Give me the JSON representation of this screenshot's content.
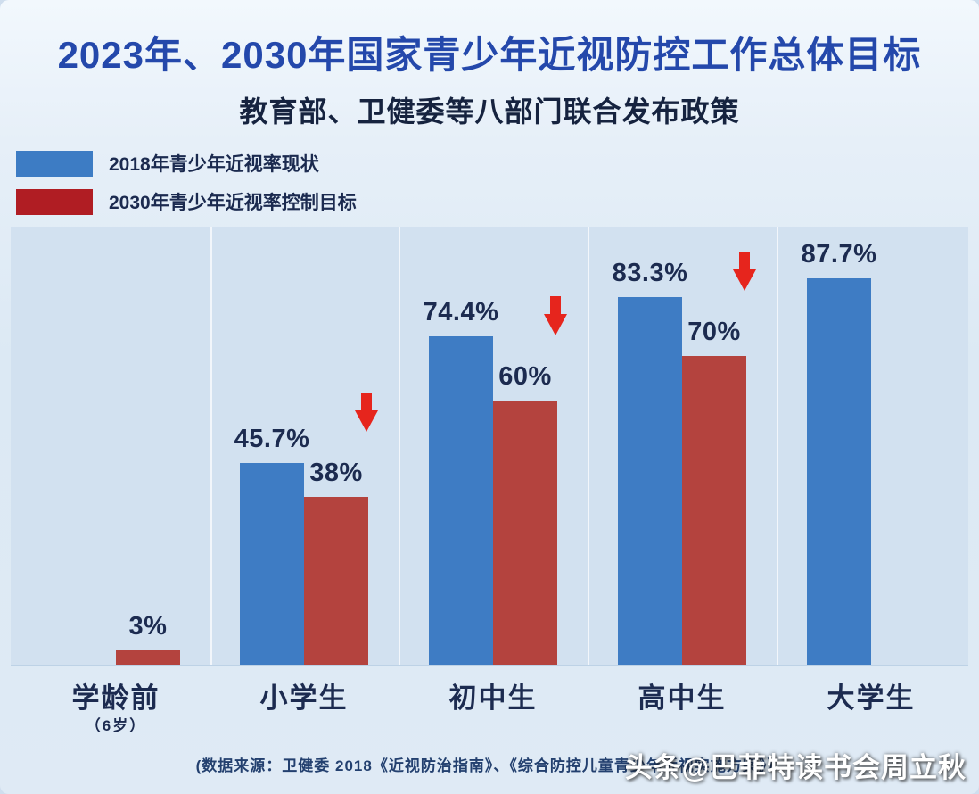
{
  "title": "2023年、2030年国家青少年近视防控工作总体目标",
  "subtitle": "教育部、卫健委等八部门联合发布政策",
  "legend": [
    {
      "label": "2018年青少年近视率现状",
      "color": "#3d7cc4"
    },
    {
      "label": "2030年青少年近视率控制目标",
      "color": "#b01d23"
    }
  ],
  "chart_data": {
    "type": "bar",
    "title": "2023年、2030年国家青少年近视防控工作总体目标",
    "categories": [
      "学龄前",
      "小学生",
      "初中生",
      "高中生",
      "大学生"
    ],
    "category_notes": [
      "（6岁）",
      "",
      "",
      "",
      ""
    ],
    "series": [
      {
        "name": "2018年青少年近视率现状",
        "color": "#3e7cc4",
        "values": [
          null,
          45.7,
          74.4,
          83.3,
          87.7
        ],
        "labels": [
          "",
          "45.7%",
          "74.4%",
          "83.3%",
          "87.7%"
        ]
      },
      {
        "name": "2030年青少年近视率控制目标",
        "color": "#b4433e",
        "values": [
          3,
          38,
          60,
          70,
          null
        ],
        "labels": [
          "3%",
          "38%",
          "60%",
          "70%",
          ""
        ]
      }
    ],
    "decrease_arrows": [
      false,
      true,
      true,
      true,
      false
    ],
    "arrow_color": "#e6251d",
    "xlabel": "",
    "ylabel": "",
    "ylim": [
      0,
      100
    ],
    "grid": "vertical-column-separators",
    "legend_position": "top-left"
  },
  "source": "(数据来源：卫健委 2018《近视防治指南》、《综合防控儿童青少年近视实施方案》）",
  "watermark": "头条@巴菲特读书会周立秋"
}
